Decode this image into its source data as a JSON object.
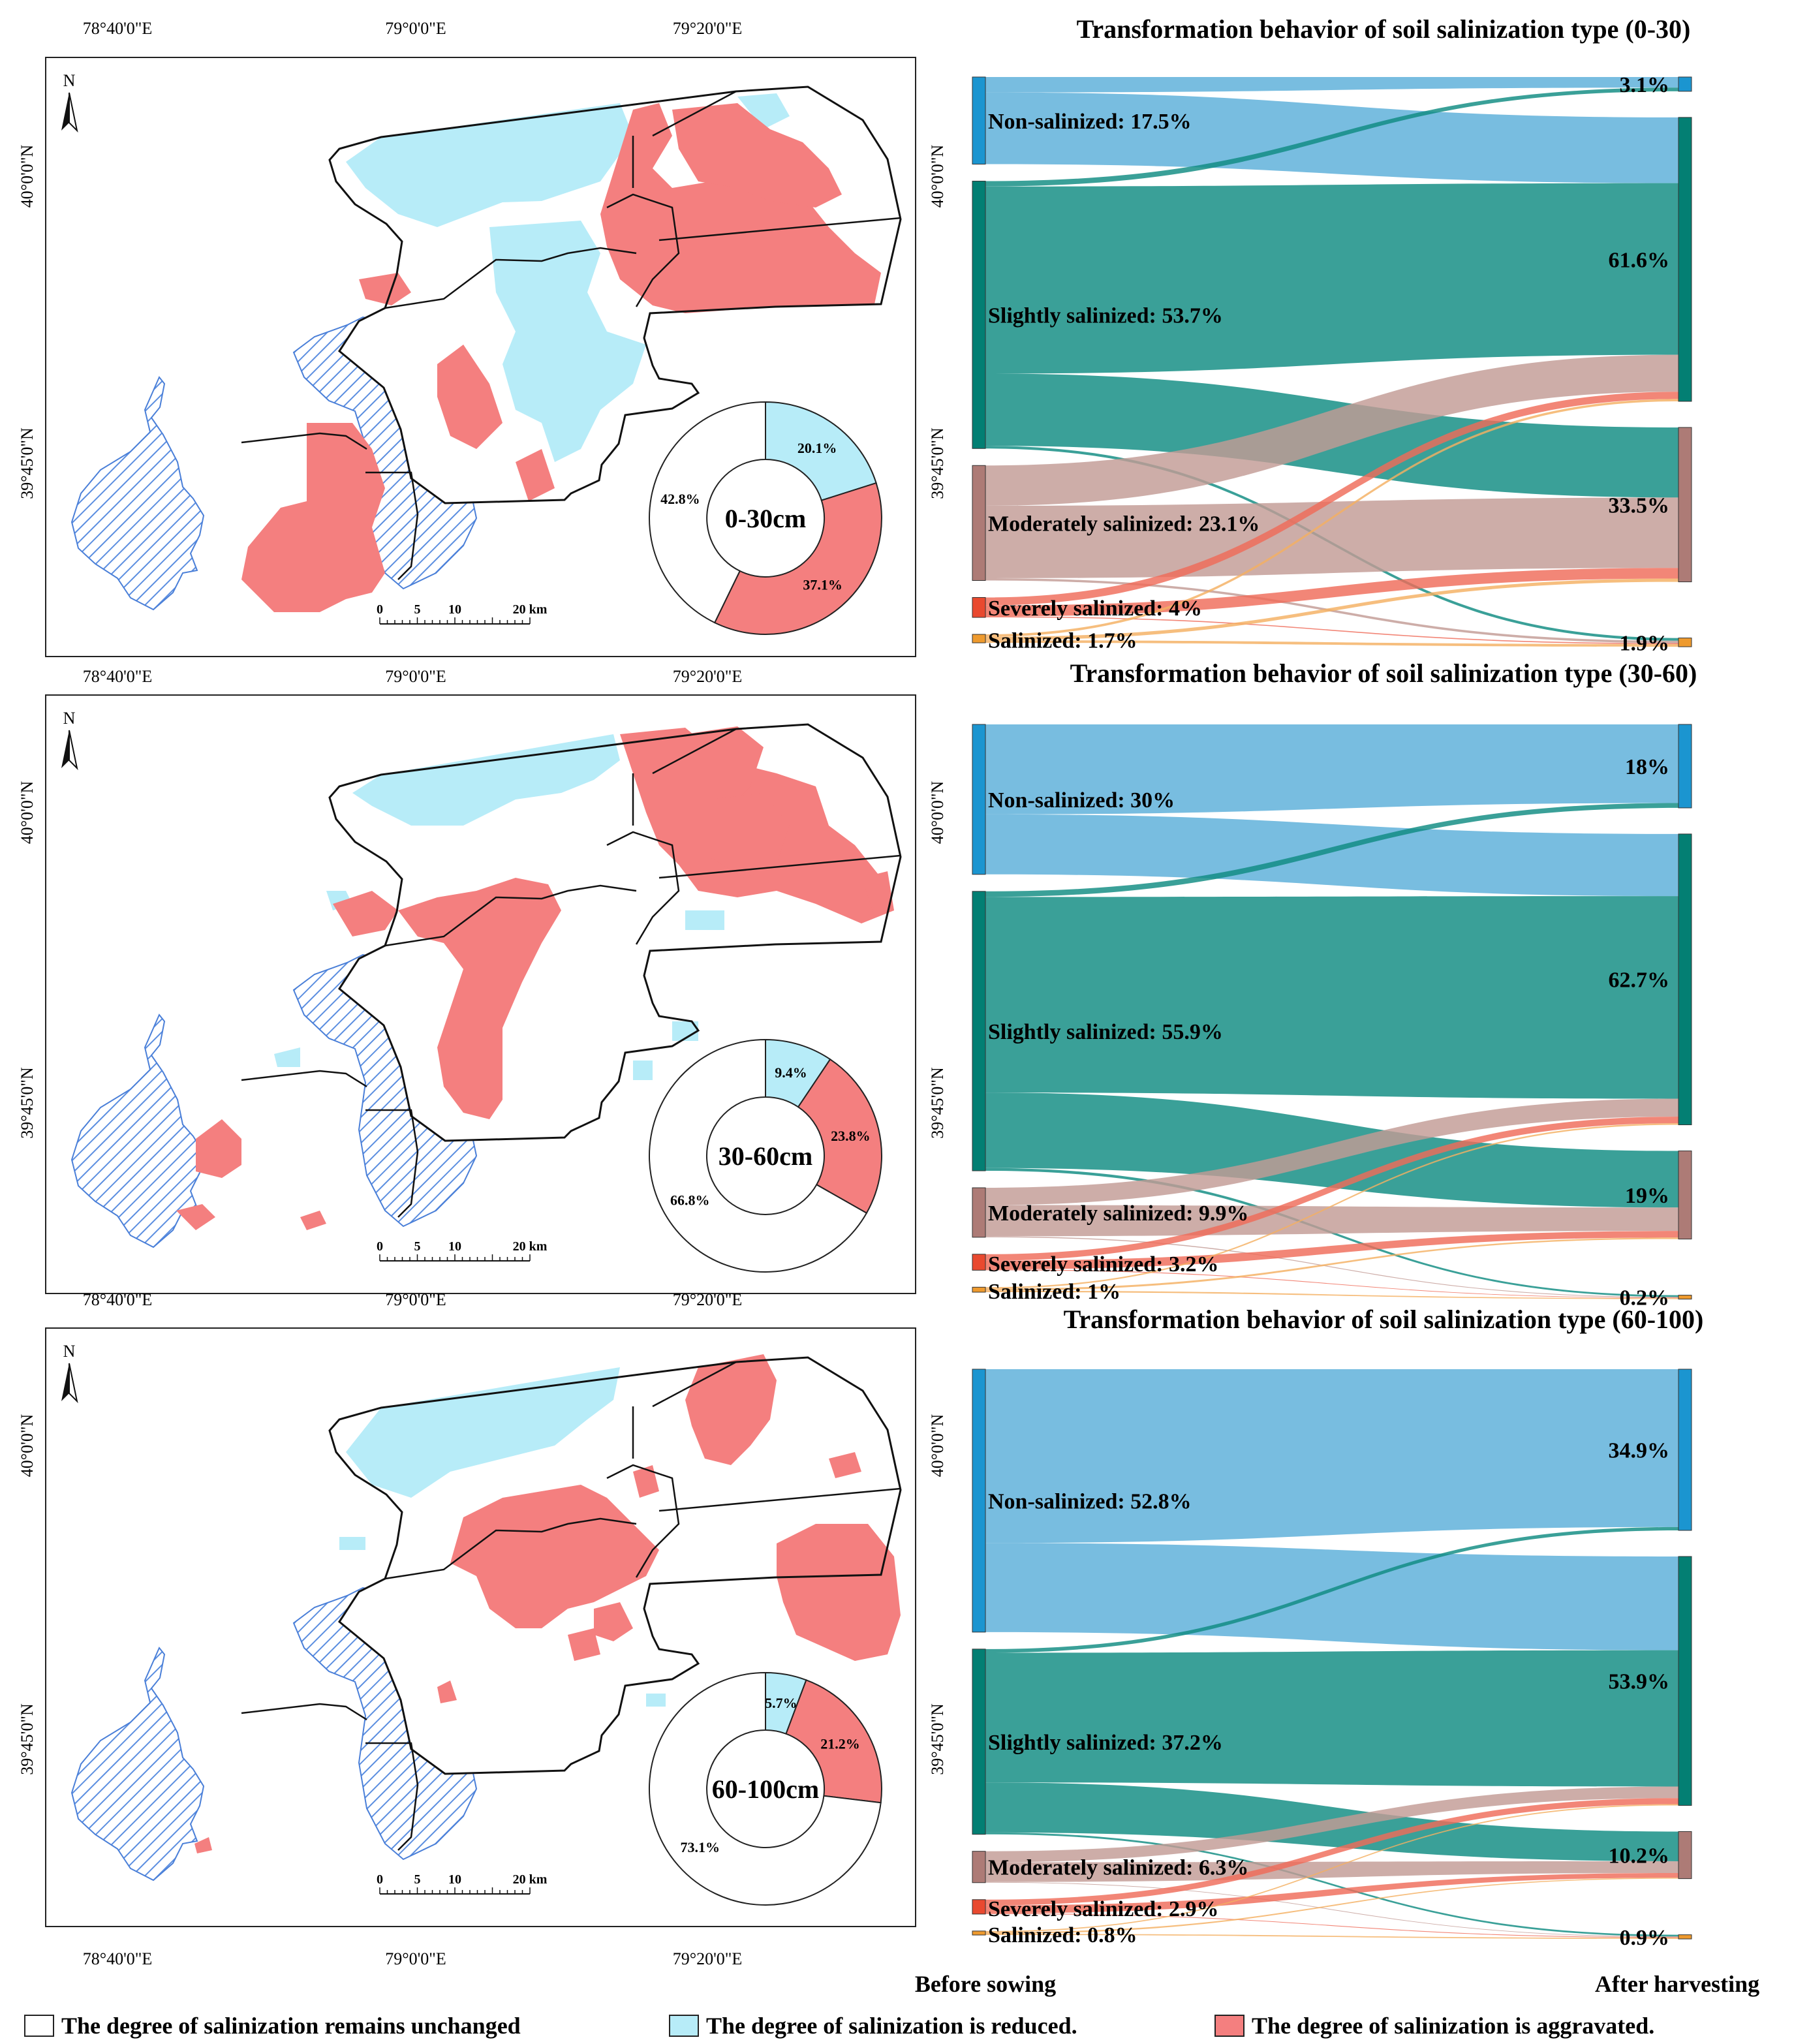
{
  "coords": {
    "lon": [
      "78°40'0\"E",
      "79°0'0\"E",
      "79°20'0\"E"
    ],
    "lat": [
      "40°0'0\"N",
      "39°45'0\"N"
    ]
  },
  "north": "N",
  "scalebar": {
    "ticks": [
      "0",
      "5",
      "10"
    ],
    "end": "20 km"
  },
  "panels": [
    {
      "depth": "0-30cm",
      "donut": [
        {
          "cls": "unchanged",
          "value": 42.8,
          "label": "42.8%"
        },
        {
          "cls": "reduced",
          "value": 20.1,
          "label": "20.1%"
        },
        {
          "cls": "aggravated",
          "value": 37.1,
          "label": "37.1%"
        }
      ]
    },
    {
      "depth": "30-60cm",
      "donut": [
        {
          "cls": "unchanged",
          "value": 66.8,
          "label": "66.8%"
        },
        {
          "cls": "reduced",
          "value": 9.4,
          "label": "9.4%"
        },
        {
          "cls": "aggravated",
          "value": 23.8,
          "label": "23.8%"
        }
      ]
    },
    {
      "depth": "60-100cm",
      "donut": [
        {
          "cls": "unchanged",
          "value": 73.1,
          "label": "73.1%"
        },
        {
          "cls": "reduced",
          "value": 5.7,
          "label": "5.7%"
        },
        {
          "cls": "aggravated",
          "value": 21.2,
          "label": "21.2%"
        }
      ]
    }
  ],
  "chart_data": [
    {
      "type": "sankey",
      "title": "Transformation behavior of soil salinization type (0-30)",
      "categories": [
        "Non-salinized",
        "Slightly salinized",
        "Moderately salinized",
        "Severely salinized",
        "Salinized"
      ],
      "before": [
        17.5,
        53.7,
        23.1,
        4,
        1.7
      ],
      "before_labels": [
        "Non-salinized: 17.5%",
        "Slightly salinized: 53.7%",
        "Moderately salinized: 23.1%",
        "Severely salinized: 4%",
        "Salinized: 1.7%"
      ],
      "after": [
        3.1,
        61.6,
        33.5,
        0,
        1.9
      ],
      "after_labels": [
        "3.1%",
        "61.6%",
        "33.5%",
        "",
        "1.9%"
      ]
    },
    {
      "type": "sankey",
      "title": "Transformation behavior of soil salinization type (30-60)",
      "categories": [
        "Non-salinized",
        "Slightly salinized",
        "Moderately salinized",
        "Severely salinized",
        "Salinized"
      ],
      "before": [
        30,
        55.9,
        9.9,
        3.2,
        1
      ],
      "before_labels": [
        "Non-salinized: 30%",
        "Slightly salinized: 55.9%",
        "Moderately salinized: 9.9%",
        "Severely salinized: 3.2%",
        "Salinized: 1%"
      ],
      "after": [
        18,
        62.7,
        19,
        0,
        0.2
      ],
      "after_labels": [
        "18%",
        "62.7%",
        "19%",
        "",
        "0.2%"
      ]
    },
    {
      "type": "sankey",
      "title": "Transformation behavior of soil salinization type (60-100)",
      "categories": [
        "Non-salinized",
        "Slightly salinized",
        "Moderately salinized",
        "Severely salinized",
        "Salinized"
      ],
      "before": [
        52.8,
        37.2,
        6.3,
        2.9,
        0.8
      ],
      "before_labels": [
        "Non-salinized: 52.8%",
        "Slightly salinized: 37.2%",
        "Moderately salinized: 6.3%",
        "Severely salinized: 2.9%",
        "Salinized: 0.8%"
      ],
      "after": [
        34.9,
        53.9,
        10.2,
        0,
        0.9
      ],
      "after_labels": [
        "34.9%",
        "53.9%",
        "10.2%",
        "",
        "0.9%"
      ]
    }
  ],
  "axis_labels": {
    "left": "Before sowing",
    "right": "After harvesting"
  },
  "legend": [
    {
      "cls": "unchanged",
      "label": "The degree of salinization remains unchanged"
    },
    {
      "cls": "reduced",
      "label": "The degree of salinization is reduced."
    },
    {
      "cls": "aggravated",
      "label": "The degree of salinization is aggravated."
    }
  ],
  "colors": {
    "unchanged": "#ffffff",
    "reduced": "#b7ecf8",
    "aggravated": "#f47f7f",
    "hatch": "#4a7fd8",
    "non": "#1b95d0",
    "slight": "#037f73",
    "moderate": "#ad7b76",
    "severe": "#e9492f",
    "salinized": "#ee9a2e",
    "flow_non": "#5aaed9",
    "flow_slight": "#0f8b81",
    "flow_moderate": "#c29b95",
    "flow_severe": "#ef6b59",
    "flow_salinized": "#f4b061"
  }
}
